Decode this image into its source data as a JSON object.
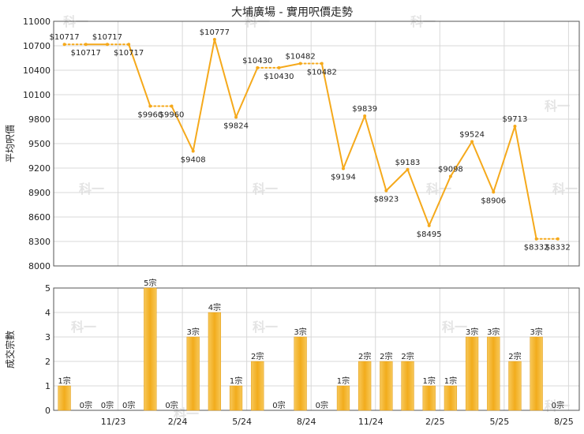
{
  "chart_data": [
    {
      "type": "line",
      "title": "大埔廣場 - 實用呎價走勢",
      "ylabel": "平均呎價",
      "ylim": [
        8000,
        11000
      ],
      "yticks": [
        8000,
        8300,
        8600,
        8900,
        9200,
        9500,
        9800,
        10100,
        10400,
        10700,
        11000
      ],
      "x_labels": [
        "11/23",
        "2/24",
        "5/24",
        "8/24",
        "11/24",
        "2/25",
        "5/25",
        "8/25"
      ],
      "x_label_months": [
        3,
        6,
        9,
        12,
        15,
        18,
        21,
        24
      ],
      "months": 24,
      "values": [
        10717,
        10717,
        10717,
        10717,
        9960,
        9960,
        9408,
        10777,
        9824,
        10430,
        10430,
        10482,
        10482,
        9194,
        9839,
        8923,
        9183,
        8495,
        9098,
        9524,
        8906,
        9713,
        8332,
        8332
      ],
      "value_labels": [
        "$10717",
        "$10717",
        "$10717",
        "$10717",
        "$9960",
        "$9960",
        "$9408",
        "$10777",
        "$9824",
        "$10430",
        "$10430",
        "$10482",
        "$10482",
        "$9194",
        "$9839",
        "$8923",
        "$9183",
        "$8495",
        "$9098",
        "$9524",
        "$8906",
        "$9713",
        "$8332",
        "$8332"
      ],
      "carried": [
        false,
        true,
        false,
        true,
        false,
        true,
        false,
        false,
        false,
        false,
        true,
        false,
        true,
        false,
        false,
        false,
        false,
        false,
        false,
        false,
        false,
        false,
        false,
        true
      ],
      "line_color": "#f5a91b"
    },
    {
      "type": "bar",
      "ylabel": "成交宗數",
      "ylim": [
        0,
        5
      ],
      "yticks": [
        0,
        1,
        2,
        3,
        4,
        5
      ],
      "values": [
        1,
        0,
        0,
        0,
        5,
        0,
        3,
        4,
        1,
        2,
        0,
        3,
        0,
        1,
        2,
        2,
        2,
        1,
        1,
        3,
        3,
        2,
        3,
        0
      ],
      "value_labels": [
        "1宗",
        "0宗",
        "0宗",
        "0宗",
        "5宗",
        "0宗",
        "3宗",
        "4宗",
        "1宗",
        "2宗",
        "0宗",
        "3宗",
        "0宗",
        "1宗",
        "2宗",
        "2宗",
        "2宗",
        "1宗",
        "1宗",
        "3宗",
        "3宗",
        "2宗",
        "3宗",
        "0宗"
      ],
      "bar_color": "#f2b12c"
    }
  ],
  "watermark": "科一"
}
